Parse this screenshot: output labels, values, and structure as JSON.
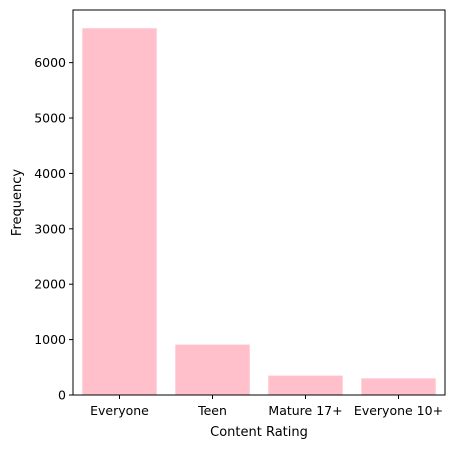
{
  "chart_data": {
    "type": "bar",
    "title": "",
    "xlabel": "Content Rating",
    "ylabel": "Frequency",
    "categories": [
      "Everyone",
      "Teen",
      "Mature 17+",
      "Everyone 10+"
    ],
    "values": [
      6620,
      910,
      350,
      300
    ],
    "ylim": [
      0,
      6950
    ],
    "yticks": [
      0,
      1000,
      2000,
      3000,
      4000,
      5000,
      6000
    ],
    "bar_color": "#ffc0cb",
    "grid": false,
    "legend": "none"
  }
}
